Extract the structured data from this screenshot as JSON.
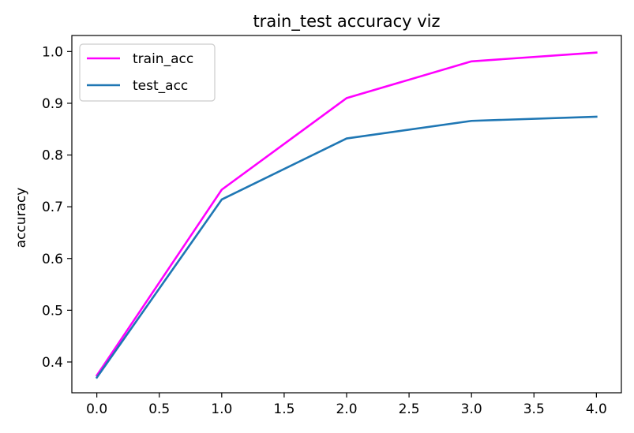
{
  "chart_data": {
    "type": "line",
    "title": "train_test accuracy viz",
    "xlabel": "",
    "ylabel": "accuracy",
    "x": [
      0,
      1,
      2,
      3,
      4
    ],
    "xlim": [
      -0.2,
      4.2
    ],
    "ylim": [
      0.3405,
      1.031
    ],
    "xticks": [
      0.0,
      0.5,
      1.0,
      1.5,
      2.0,
      2.5,
      3.0,
      3.5,
      4.0
    ],
    "xtick_labels": [
      "0.0",
      "0.5",
      "1.0",
      "1.5",
      "2.0",
      "2.5",
      "3.0",
      "3.5",
      "4.0"
    ],
    "yticks": [
      0.4,
      0.5,
      0.6,
      0.7,
      0.8,
      0.9,
      1.0
    ],
    "ytick_labels": [
      "0.4",
      "0.5",
      "0.6",
      "0.7",
      "0.8",
      "0.9",
      "1.0"
    ],
    "grid": false,
    "legend_position": "top-left",
    "series": [
      {
        "name": "train_acc",
        "color": "#ff00ff",
        "values": [
          0.374,
          0.733,
          0.91,
          0.981,
          0.998
        ]
      },
      {
        "name": "test_acc",
        "color": "#1f77b4",
        "values": [
          0.37,
          0.714,
          0.832,
          0.866,
          0.874
        ]
      }
    ]
  }
}
